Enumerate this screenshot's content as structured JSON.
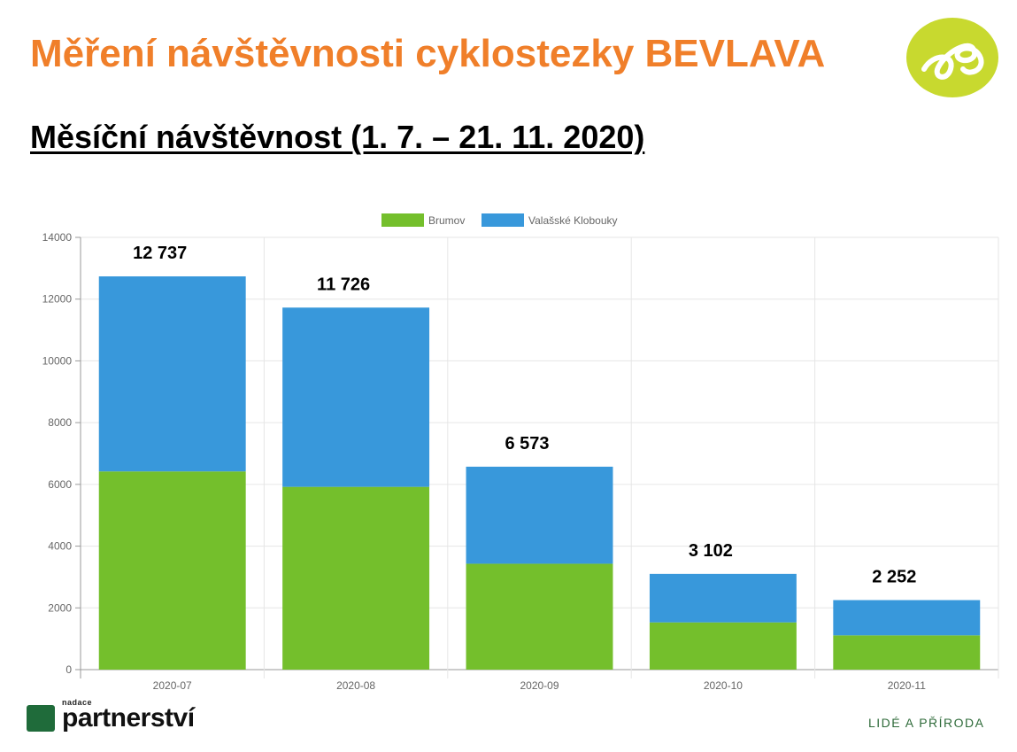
{
  "slide": {
    "title": "Měření návštěvnosti cyklostezky BEVLAVA",
    "subtitle": "Měsíční návštěvnost (1. 7. – 21. 11. 2020)"
  },
  "branding": {
    "logo_icon": "cyclist-swirl-logo-icon",
    "logo_color": "#c8d92f",
    "partner_small": "nadace",
    "partner_name": "partnerství",
    "slogan": "LIDÉ A PŘÍRODA"
  },
  "chart_data": {
    "type": "bar",
    "stacked": true,
    "categories": [
      "2020-07",
      "2020-08",
      "2020-09",
      "2020-10",
      "2020-11"
    ],
    "series": [
      {
        "name": "Brumov",
        "color": "#74bf2c",
        "values": [
          6420,
          5920,
          3430,
          1530,
          1110
        ]
      },
      {
        "name": "Valašské Klobouky",
        "color": "#3898db",
        "values": [
          6317,
          5806,
          3143,
          1572,
          1142
        ]
      }
    ],
    "totals_labels": [
      "12 737",
      "11 726",
      "6 573",
      "3 102",
      "2 252"
    ],
    "ylim": [
      0,
      14000
    ],
    "yticks": [
      0,
      2000,
      4000,
      6000,
      8000,
      10000,
      12000,
      14000
    ],
    "grid": true,
    "legend": "top-center",
    "title": "",
    "xlabel": "",
    "ylabel": ""
  }
}
